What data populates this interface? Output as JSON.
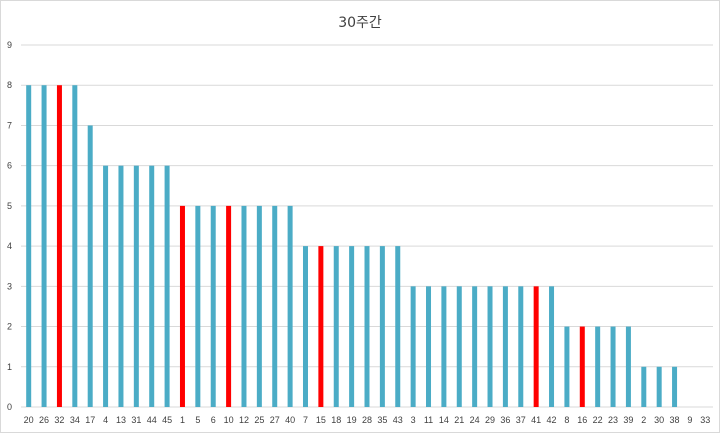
{
  "chart_data": {
    "type": "bar",
    "title": "30주간",
    "xlabel": "",
    "ylabel": "",
    "ylim": [
      0,
      9
    ],
    "yticks": [
      0,
      1,
      2,
      3,
      4,
      5,
      6,
      7,
      8,
      9
    ],
    "grid": true,
    "legend": "none",
    "categories": [
      "20",
      "26",
      "32",
      "34",
      "17",
      "4",
      "13",
      "31",
      "44",
      "45",
      "1",
      "5",
      "6",
      "10",
      "12",
      "25",
      "27",
      "40",
      "7",
      "15",
      "18",
      "19",
      "28",
      "35",
      "43",
      "3",
      "11",
      "14",
      "21",
      "24",
      "29",
      "36",
      "37",
      "41",
      "42",
      "8",
      "16",
      "22",
      "23",
      "39",
      "2",
      "30",
      "38",
      "9",
      "33"
    ],
    "values": [
      8,
      8,
      8,
      8,
      7,
      6,
      6,
      6,
      6,
      6,
      5,
      5,
      5,
      5,
      5,
      5,
      5,
      5,
      4,
      4,
      4,
      4,
      4,
      4,
      4,
      3,
      3,
      3,
      3,
      3,
      3,
      3,
      3,
      3,
      3,
      2,
      2,
      2,
      2,
      2,
      1,
      1,
      1,
      0,
      0
    ],
    "highlighted": [
      "32",
      "1",
      "10",
      "15",
      "41",
      "16"
    ],
    "colors": {
      "bar": "#4bacc6",
      "highlight": "#ff0000",
      "grid": "#d9d9d9",
      "text": "#404040"
    }
  }
}
